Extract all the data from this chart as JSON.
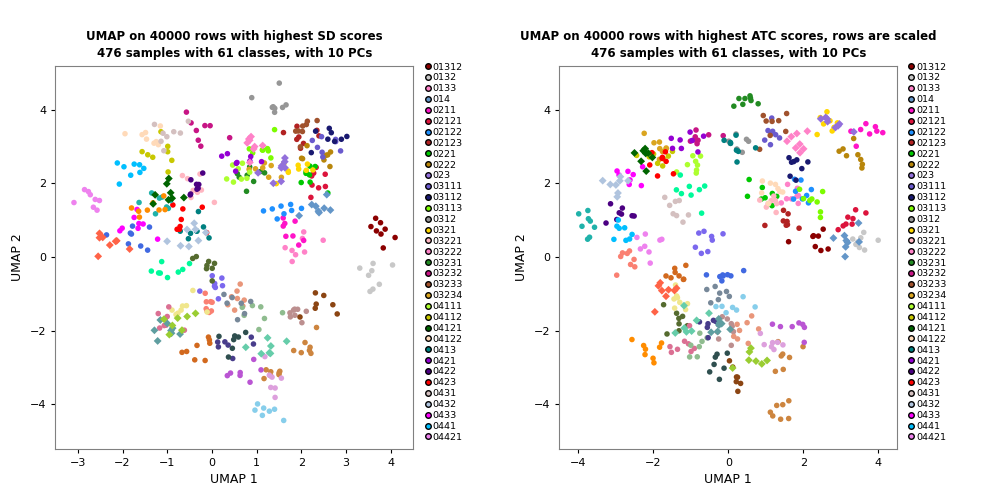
{
  "title1": "UMAP on 40000 rows with highest SD scores\n476 samples with 61 classes, with 10 PCs",
  "title2": "UMAP on 40000 rows with highest ATC scores, rows are scaled\n476 samples with 61 classes, with 10 PCs",
  "xlabel": "UMAP 1",
  "ylabel": "UMAP 2",
  "legend_classes": [
    [
      "01312",
      "#8B0000"
    ],
    [
      "0132",
      "#C8C8C8"
    ],
    [
      "0133",
      "#FF82C8"
    ],
    [
      "014",
      "#6496C8"
    ],
    [
      "0211",
      "#FF14C8"
    ],
    [
      "02121",
      "#DC143C"
    ],
    [
      "02122",
      "#1E90FF"
    ],
    [
      "02123",
      "#B22222"
    ],
    [
      "0221",
      "#00C800"
    ],
    [
      "0222",
      "#B8860B"
    ],
    [
      "023",
      "#9370DB"
    ],
    [
      "03111",
      "#6A5ACD"
    ],
    [
      "03112",
      "#191970"
    ],
    [
      "03113",
      "#7CFC00"
    ],
    [
      "0312",
      "#969696"
    ],
    [
      "0321",
      "#FFD700"
    ],
    [
      "03221",
      "#FFB6C1"
    ],
    [
      "03222",
      "#FF82C8"
    ],
    [
      "03231",
      "#228B22"
    ],
    [
      "03232",
      "#C71585"
    ],
    [
      "03233",
      "#A0522D"
    ],
    [
      "03234",
      "#DAA520"
    ],
    [
      "04111",
      "#ADFF2F"
    ],
    [
      "04112",
      "#C8C800"
    ],
    [
      "04121",
      "#006400"
    ],
    [
      "04122",
      "#FFDAB9"
    ],
    [
      "0413",
      "#008080"
    ],
    [
      "0421",
      "#9400D3"
    ],
    [
      "0422",
      "#4B0082"
    ],
    [
      "0423",
      "#FF0000"
    ],
    [
      "0431",
      "#D4C0C0"
    ],
    [
      "0432",
      "#B0C4DE"
    ],
    [
      "0433",
      "#FF00FF"
    ],
    [
      "0441",
      "#00BFFF"
    ],
    [
      "04421",
      "#EE82EE"
    ]
  ],
  "background": "#ffffff",
  "plot_bg": "#ffffff",
  "border_color": "#808080",
  "xlim1": [
    -3.5,
    4.5
  ],
  "ylim1": [
    -5.2,
    5.2
  ],
  "xlim2": [
    -4.5,
    4.5
  ],
  "ylim2": [
    -5.2,
    5.2
  ],
  "xticks1": [
    -3,
    -2,
    -1,
    0,
    1,
    2,
    3,
    4
  ],
  "yticks1": [
    -4,
    -2,
    0,
    2,
    4
  ],
  "xticks2": [
    -4,
    -2,
    0,
    2,
    4
  ],
  "yticks2": [
    -4,
    -2,
    0,
    2,
    4
  ],
  "title_fontsize": 8.5,
  "axis_label_fontsize": 9,
  "tick_fontsize": 8,
  "legend_fontsize": 6.8,
  "point_size": 16,
  "n_points": 476
}
